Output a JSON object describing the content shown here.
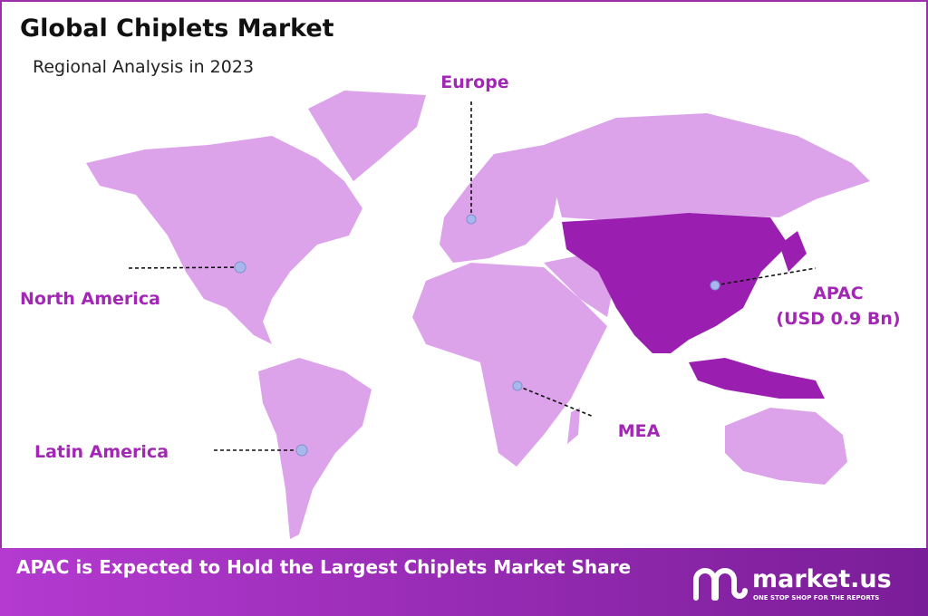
{
  "header": {
    "title": "Global Chiplets Market",
    "subtitle": "Regional Analysis in 2023"
  },
  "regions": [
    {
      "label": "North America"
    },
    {
      "label": "Europe"
    },
    {
      "label": "APAC",
      "value_label": "(USD 0.9 Bn)"
    },
    {
      "label": "MEA"
    },
    {
      "label": "Latin America"
    }
  ],
  "footer": {
    "text": "APAC is Expected to Hold the Largest Chiplets Market Share",
    "brand": "market.us",
    "tagline": "ONE STOP SHOP FOR THE REPORTS"
  }
}
